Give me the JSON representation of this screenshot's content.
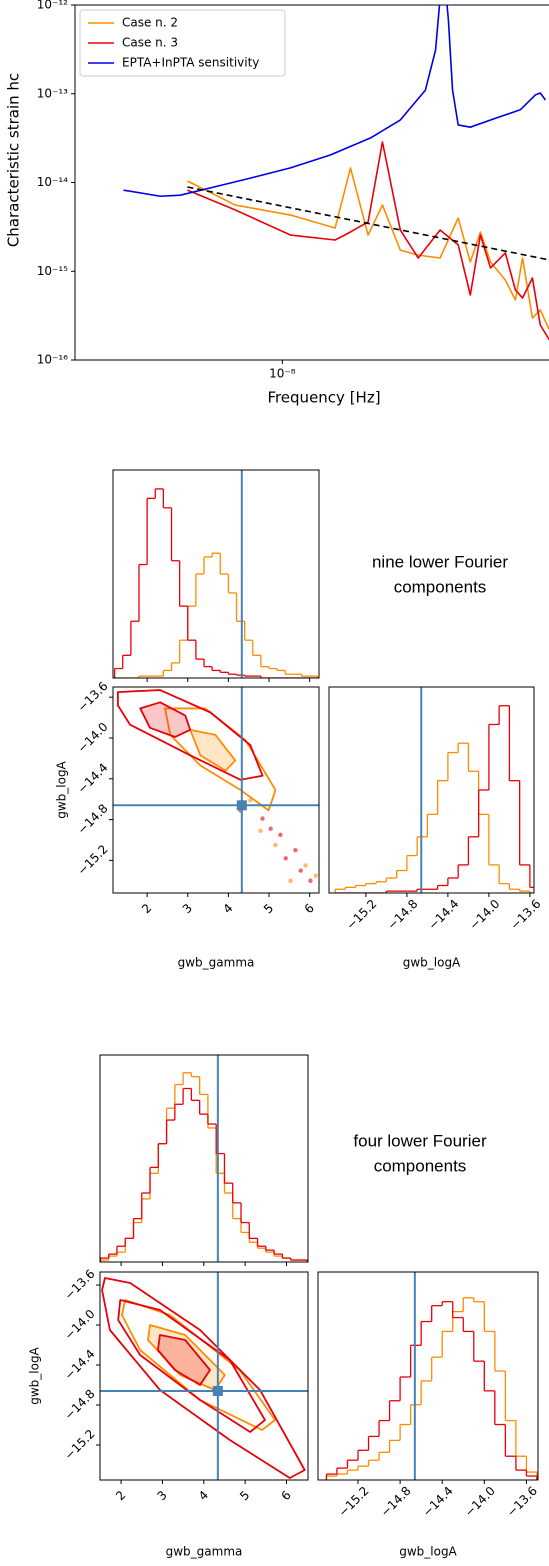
{
  "chart_data": [
    {
      "type": "line",
      "xlabel": "Frequency [Hz]",
      "ylabel": "Characteristic strain hc",
      "xscale": "log",
      "yscale": "log",
      "xlim": [
        2.26e-09,
        6.77e-08
      ],
      "ylim": [
        1e-16,
        1e-12
      ],
      "xticks": [
        {
          "value": 1e-08,
          "label": "10⁻⁸"
        }
      ],
      "yticks": [
        {
          "value": 1e-16,
          "label": "10⁻¹⁶"
        },
        {
          "value": 1e-15,
          "label": "10⁻¹⁵"
        },
        {
          "value": 1e-14,
          "label": "10⁻¹⁴"
        },
        {
          "value": 1e-13,
          "label": "10⁻¹³"
        },
        {
          "value": 1e-12,
          "label": "10⁻¹²"
        }
      ],
      "legend": "upper left",
      "series": [
        {
          "name": "Case n. 2",
          "color": "#ff8c00",
          "x": [
            5.06e-09,
            7.14e-09,
            1.06e-08,
            1.46e-08,
            1.63e-08,
            1.85e-08,
            2.05e-08,
            2.33e-08,
            2.65e-08,
            3.1e-08,
            3.53e-08,
            3.85e-08,
            4.14e-08,
            4.45e-08,
            4.95e-08,
            5.32e-08,
            5.6e-08,
            6.01e-08,
            6.36e-08,
            6.79e-08
          ],
          "values": [
            1.04e-14,
            5.57e-15,
            4.3e-15,
            3.07e-15,
            1.46e-14,
            2.56e-15,
            5.57e-15,
            1.73e-15,
            1.52e-15,
            1.41e-15,
            3.98e-15,
            1.27e-15,
            2.77e-15,
            1.27e-15,
            7.96e-16,
            4.74e-16,
            1.41e-15,
            2.97e-16,
            3.66e-16,
            2.18e-16
          ]
        },
        {
          "name": "Case n. 3",
          "color": "#e8000b",
          "x": [
            5.06e-09,
            7.14e-09,
            1.06e-08,
            1.46e-08,
            1.63e-08,
            1.85e-08,
            2.05e-08,
            2.33e-08,
            2.65e-08,
            3.1e-08,
            3.53e-08,
            3.85e-08,
            4.14e-08,
            4.45e-08,
            4.95e-08,
            5.32e-08,
            5.6e-08,
            6.01e-08,
            6.36e-08,
            6.79e-08
          ],
          "values": [
            8.2e-15,
            4.9e-15,
            2.56e-15,
            2.25e-15,
            2.77e-15,
            3.59e-15,
            2.86e-14,
            2.92e-15,
            1.41e-15,
            2.92e-15,
            1.98e-15,
            5.4e-16,
            2.56e-15,
            1.09e-15,
            1.61e-15,
            6.15e-16,
            5e-16,
            8.4e-16,
            2.48e-16,
            1.68e-16
          ]
        },
        {
          "name": "EPTA+InPTA sensitivity",
          "color": "#0000e6",
          "x": [
            3.2e-09,
            4.17e-09,
            4.81e-09,
            5.97e-09,
            7.95e-09,
            1.06e-08,
            1.41e-08,
            1.88e-08,
            2.33e-08,
            2.79e-08,
            3e-08,
            3.17e-08,
            3.29e-08,
            3.39e-08,
            3.53e-08,
            3.85e-08,
            4.45e-08,
            5.51e-08,
            6.14e-08,
            6.36e-08,
            6.6e-08
          ],
          "values": [
            8.2e-15,
            7e-15,
            7.2e-15,
            8.7e-15,
            1.12e-14,
            1.46e-14,
            2.04e-14,
            3.17e-14,
            5.06e-14,
            1.1e-13,
            3.1e-13,
            3e-12,
            6.8e-13,
            1.1e-13,
            4.45e-14,
            4.2e-14,
            5.06e-14,
            6.6e-14,
            9.7e-14,
            1.02e-13,
            8.5e-14
          ]
        },
        {
          "color": "#000000",
          "dash": true,
          "x": [
            5.06e-09,
            6.79e-08
          ],
          "values": [
            8.9e-15,
            1.34e-15
          ]
        }
      ]
    },
    {
      "type": "corner",
      "annotation": [
        "nine lower Fourier",
        "components"
      ],
      "x_label": "gwb_gamma",
      "y_label": "gwb_logA",
      "x2_label": "gwb_logA",
      "xlim": [
        1.16,
        6.23
      ],
      "xticks": [
        2,
        3,
        4,
        5,
        6
      ],
      "ylim": [
        -15.52,
        -13.5
      ],
      "yticks": [
        {
          "value": -13.6,
          "label": "−13.6"
        },
        {
          "value": -14.0,
          "label": "−14.0"
        },
        {
          "value": -14.4,
          "label": "−14.4"
        },
        {
          "value": -14.8,
          "label": "−14.8"
        },
        {
          "value": -15.2,
          "label": "−15.2"
        }
      ],
      "x2lim": [
        -15.56,
        -13.56
      ],
      "x2ticks": [
        {
          "value": -15.2,
          "label": "−15.2"
        },
        {
          "value": -14.8,
          "label": "−14.8"
        },
        {
          "value": -14.4,
          "label": "−14.4"
        },
        {
          "value": -14.0,
          "label": "−14.0"
        },
        {
          "value": -13.6,
          "label": "−13.6"
        }
      ],
      "hist_ylim": [
        0,
        1.1
      ],
      "truth_x": 4.33,
      "truth_y": -14.66,
      "truth_color": "#4682b4",
      "gamma_bins": [
        1.2,
        1.4,
        1.6,
        1.8,
        2.0,
        2.2,
        2.4,
        2.6,
        2.8,
        3.0,
        3.2,
        3.4,
        3.6,
        3.8,
        4.0,
        4.2,
        4.4,
        4.6,
        4.8,
        5.0,
        5.2,
        5.4,
        5.6,
        5.8,
        6.0,
        6.2
      ],
      "logA_bins": [
        -15.5,
        -15.4,
        -15.3,
        -15.2,
        -15.1,
        -15.0,
        -14.9,
        -14.8,
        -14.7,
        -14.6,
        -14.5,
        -14.4,
        -14.3,
        -14.2,
        -14.1,
        -14.0,
        -13.9,
        -13.8,
        -13.7,
        -13.6,
        -13.5
      ],
      "series": [
        {
          "color": "#ff8c00",
          "gamma_counts": [
            0,
            0,
            0,
            0.01,
            0.01,
            0.01,
            0.04,
            0.08,
            0.2,
            0.38,
            0.55,
            0.64,
            0.66,
            0.55,
            0.45,
            0.3,
            0.2,
            0.12,
            0.06,
            0.05,
            0.04,
            0.02,
            0.02,
            0.01,
            0.01
          ],
          "logA_counts": [
            0.02,
            0.03,
            0.04,
            0.05,
            0.06,
            0.08,
            0.12,
            0.2,
            0.3,
            0.42,
            0.6,
            0.75,
            0.8,
            0.65,
            0.42,
            0.15,
            0.05,
            0.02,
            0.01,
            0
          ],
          "contours": [
            {
              "x": [
                2.44,
                3.43,
                4.42,
                5.16,
                4.99,
                4.3,
                3.31,
                2.57
              ],
              "y": [
                -13.71,
                -13.71,
                -14.02,
                -14.51,
                -14.71,
                -14.51,
                -14.27,
                -13.97
              ]
            },
            {
              "x": [
                3.06,
                3.68,
                4.17,
                3.93,
                3.31
              ],
              "y": [
                -13.92,
                -13.97,
                -14.22,
                -14.32,
                -14.17
              ]
            }
          ],
          "samples": {
            "x": [
              4.54,
              5.16,
              5.9,
              5.53,
              6.15,
              4.79
            ],
            "y": [
              -14.61,
              -15.05,
              -15.25,
              -15.4,
              -15.35,
              -14.91
            ]
          }
        },
        {
          "color": "#e8000b",
          "gamma_counts": [
            0.05,
            0.12,
            0.3,
            0.6,
            0.95,
            1.0,
            0.9,
            0.62,
            0.38,
            0.2,
            0.1,
            0.06,
            0.04,
            0.03,
            0.02,
            0.015,
            0.01,
            0.01,
            0,
            0,
            0,
            0,
            0,
            0,
            0
          ],
          "logA_counts": [
            0,
            0,
            0,
            0,
            0,
            0.01,
            0.01,
            0.01,
            0.02,
            0.02,
            0.04,
            0.08,
            0.15,
            0.3,
            0.55,
            0.9,
            1.0,
            0.6,
            0.15,
            0.03
          ],
          "contours": [
            {
              "x": [
                1.28,
                2.32,
                3.56,
                4.54,
                4.84,
                4.3,
                3.06,
                1.58,
                1.28
              ],
              "y": [
                -13.55,
                -13.53,
                -13.75,
                -14.07,
                -14.37,
                -14.41,
                -14.17,
                -13.87,
                -13.68
              ]
            },
            {
              "x": [
                1.83,
                2.32,
                2.94,
                3.06,
                2.69,
                2.07
              ],
              "y": [
                -13.71,
                -13.65,
                -13.78,
                -13.92,
                -13.99,
                -13.9
              ]
            }
          ],
          "samples": {
            "x": [
              4.3,
              4.84,
              5.28,
              5.65,
              5.78,
              6.02,
              5.41,
              5.04
            ],
            "y": [
              -14.71,
              -14.79,
              -14.95,
              -15.1,
              -15.3,
              -15.4,
              -15.18,
              -14.89
            ]
          }
        }
      ]
    },
    {
      "type": "corner",
      "annotation": [
        "four lower Fourier",
        "components"
      ],
      "x_label": "gwb_gamma",
      "y_label": "gwb_logA",
      "x2_label": "gwb_logA",
      "xlim": [
        1.49,
        6.52
      ],
      "xticks": [
        2,
        3,
        4,
        5,
        6
      ],
      "ylim": [
        -15.55,
        -13.47
      ],
      "yticks": [
        {
          "value": -13.6,
          "label": "−13.6"
        },
        {
          "value": -14.0,
          "label": "−14.0"
        },
        {
          "value": -14.4,
          "label": "−14.4"
        },
        {
          "value": -14.8,
          "label": "−14.8"
        },
        {
          "value": -15.2,
          "label": "−15.2"
        }
      ],
      "x2lim": [
        -15.58,
        -13.49
      ],
      "x2ticks": [
        {
          "value": -15.2,
          "label": "−15.2"
        },
        {
          "value": -14.8,
          "label": "−14.8"
        },
        {
          "value": -14.4,
          "label": "−14.4"
        },
        {
          "value": -14.0,
          "label": "−14.0"
        },
        {
          "value": -13.6,
          "label": "−13.6"
        }
      ],
      "hist_ylim": [
        0,
        1.05
      ],
      "truth_x": 4.34,
      "truth_y": -14.66,
      "truth_color": "#4682b4",
      "gamma_bins": [
        1.5,
        1.7,
        1.9,
        2.1,
        2.3,
        2.5,
        2.7,
        2.9,
        3.1,
        3.3,
        3.5,
        3.7,
        3.9,
        4.1,
        4.3,
        4.5,
        4.7,
        4.9,
        5.1,
        5.3,
        5.5,
        5.7,
        5.9,
        6.1,
        6.3,
        6.5
      ],
      "logA_bins": [
        -15.5,
        -15.4,
        -15.3,
        -15.2,
        -15.1,
        -15.0,
        -14.9,
        -14.8,
        -14.7,
        -14.6,
        -14.5,
        -14.4,
        -14.3,
        -14.2,
        -14.1,
        -14.0,
        -13.9,
        -13.8,
        -13.7,
        -13.6,
        -13.5
      ],
      "series": [
        {
          "color": "#ff8c00",
          "gamma_counts": [
            0.01,
            0.03,
            0.05,
            0.12,
            0.2,
            0.32,
            0.45,
            0.6,
            0.78,
            0.9,
            0.96,
            0.94,
            0.85,
            0.68,
            0.45,
            0.35,
            0.22,
            0.15,
            0.1,
            0.07,
            0.05,
            0.03,
            0.02,
            0.01,
            0.01
          ],
          "logA_counts": [
            0.02,
            0.03,
            0.05,
            0.07,
            0.1,
            0.14,
            0.2,
            0.28,
            0.38,
            0.5,
            0.62,
            0.75,
            0.85,
            0.92,
            0.9,
            0.75,
            0.55,
            0.3,
            0.12,
            0.04
          ],
          "contours": [
            {
              "x": [
                2.1,
                3.18,
                4.87,
                5.72,
                5.41,
                3.91,
                2.46,
                2.02
              ],
              "y": [
                -13.75,
                -13.9,
                -14.45,
                -14.95,
                -15.05,
                -14.75,
                -14.25,
                -13.9
              ]
            },
            {
              "x": [
                2.7,
                3.55,
                4.51,
                4.27,
                3.43,
                2.65
              ],
              "y": [
                -14.0,
                -14.1,
                -14.5,
                -14.65,
                -14.5,
                -14.15
              ]
            }
          ]
        },
        {
          "color": "#e8000b",
          "gamma_counts": [
            0.02,
            0.04,
            0.08,
            0.12,
            0.22,
            0.35,
            0.48,
            0.6,
            0.72,
            0.8,
            0.88,
            0.82,
            0.75,
            0.7,
            0.55,
            0.4,
            0.3,
            0.2,
            0.12,
            0.08,
            0.06,
            0.04,
            0.02,
            0.01,
            0.01
          ],
          "logA_counts": [
            0.03,
            0.06,
            0.1,
            0.15,
            0.22,
            0.3,
            0.4,
            0.52,
            0.68,
            0.8,
            0.88,
            0.9,
            0.82,
            0.75,
            0.6,
            0.45,
            0.28,
            0.12,
            0.05,
            0.02
          ],
          "contours": [
            {
              "x": [
                1.61,
                2.22,
                3.91,
                5.36,
                6.44,
                6.08,
                4.63,
                2.94,
                1.73,
                1.54
              ],
              "y": [
                -13.53,
                -13.58,
                -14.05,
                -14.65,
                -15.45,
                -15.53,
                -15.15,
                -14.65,
                -14.05,
                -13.65
              ]
            },
            {
              "x": [
                1.98,
                2.94,
                4.63,
                5.48,
                5.12,
                3.91,
                2.46,
                1.93
              ],
              "y": [
                -13.75,
                -13.85,
                -14.35,
                -14.95,
                -15.07,
                -14.75,
                -14.3,
                -13.95
              ]
            },
            {
              "x": [
                2.94,
                3.55,
                4.15,
                3.91,
                3.3,
                2.89
              ],
              "y": [
                -14.1,
                -14.15,
                -14.45,
                -14.6,
                -14.45,
                -14.25
              ]
            }
          ]
        }
      ]
    }
  ]
}
